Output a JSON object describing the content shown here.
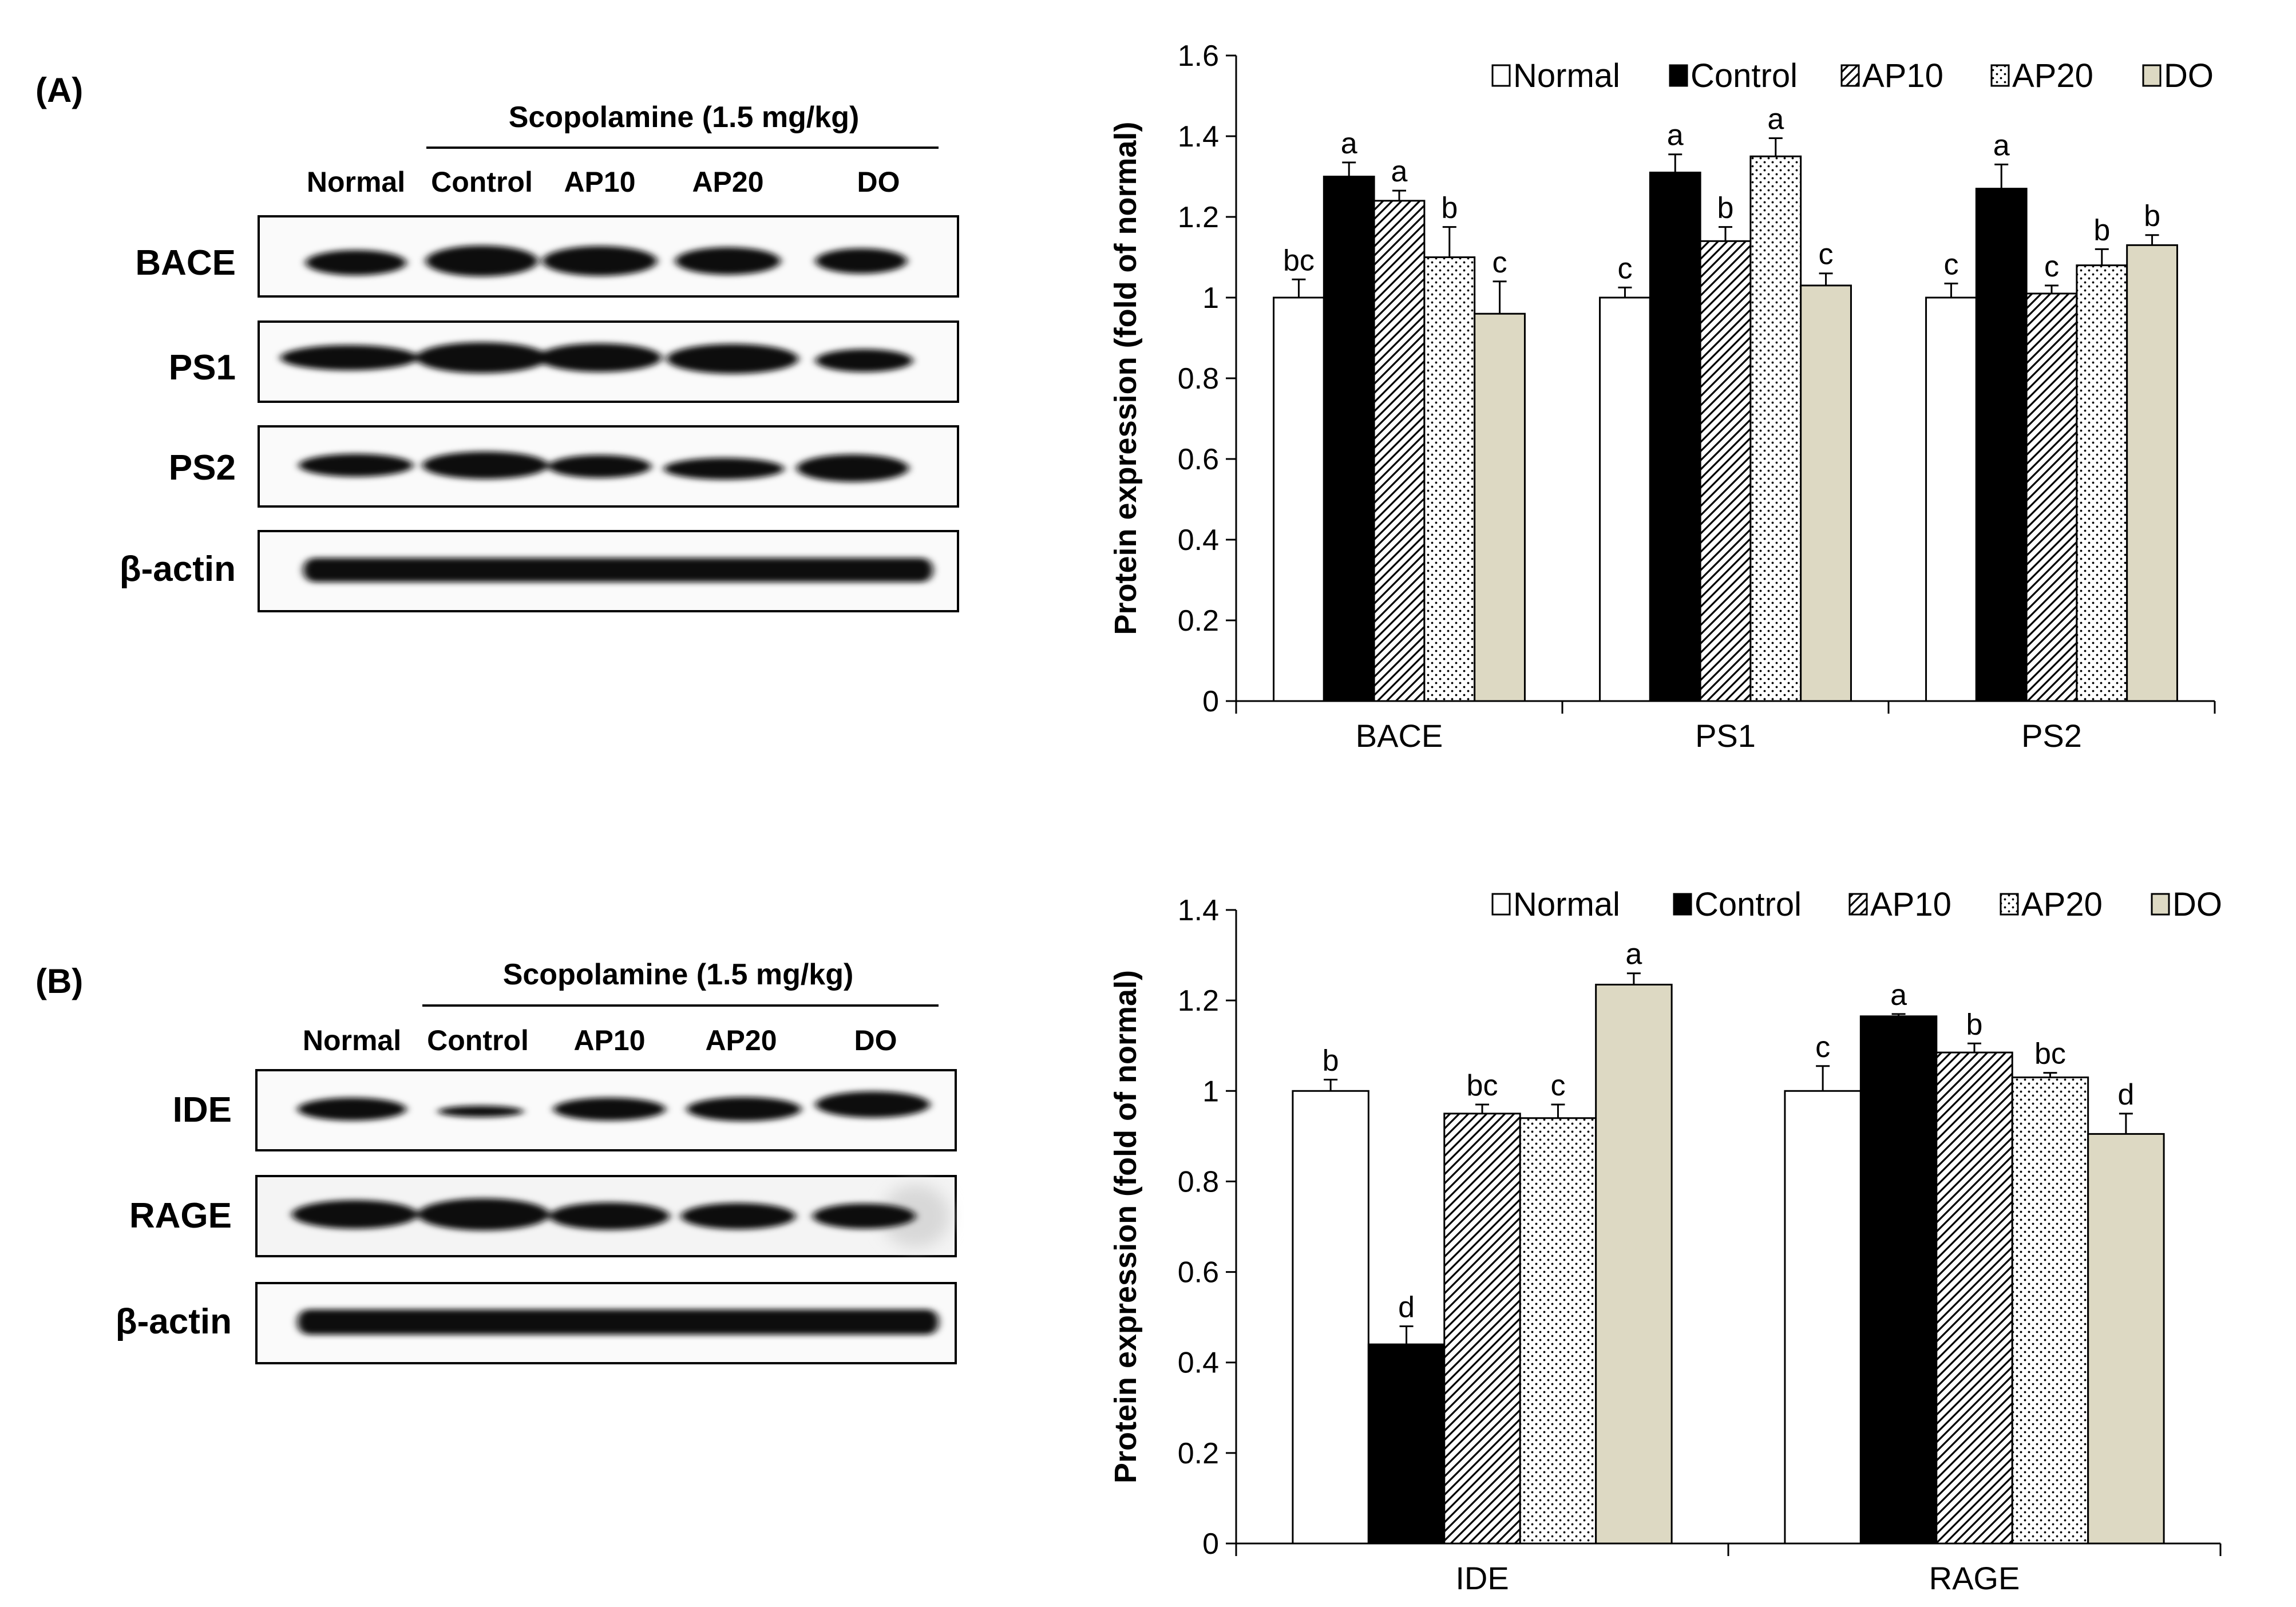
{
  "blot_A": {
    "panel_label": "(A)",
    "treatment": "Scopolamine (1.5 mg/kg)",
    "lanes": [
      "Normal",
      "Control",
      "AP10",
      "AP20",
      "DO"
    ],
    "rows": [
      "BACE",
      "PS1",
      "PS2",
      "β-actin"
    ]
  },
  "blot_B": {
    "panel_label": "(B)",
    "treatment": "Scopolamine (1.5 mg/kg)",
    "lanes": [
      "Normal",
      "Control",
      "AP10",
      "AP20",
      "DO"
    ],
    "rows": [
      "IDE",
      "RAGE",
      "β-actin"
    ]
  },
  "colors": {
    "Normal": "#ffffff",
    "Control": "#000000",
    "AP10": "#ffffff",
    "AP20": "#ffffff",
    "DO": "#ddd9c3"
  },
  "chart_data": [
    {
      "type": "bar",
      "title": "",
      "xlabel": "",
      "ylabel": "Protein expression (fold of normal)",
      "ylim": [
        0,
        1.6
      ],
      "yticks": [
        "0",
        "0.2",
        "0.4",
        "0.6",
        "0.8",
        "1",
        "1.2",
        "1.4",
        "1.6"
      ],
      "legend": [
        "Normal",
        "Control",
        "AP10",
        "AP20",
        "DO"
      ],
      "legend_position": "top",
      "categories": [
        "BACE",
        "PS1",
        "PS2"
      ],
      "series": [
        {
          "name": "Normal",
          "fill": "white",
          "values": [
            1.0,
            1.0,
            1.0
          ],
          "errors": [
            0.045,
            0.025,
            0.035
          ],
          "letters": [
            "bc",
            "c",
            "c"
          ]
        },
        {
          "name": "Control",
          "fill": "black",
          "values": [
            1.3,
            1.31,
            1.27
          ],
          "errors": [
            0.035,
            0.045,
            0.06
          ],
          "letters": [
            "a",
            "a",
            "a"
          ]
        },
        {
          "name": "AP10",
          "fill": "hatch",
          "values": [
            1.24,
            1.14,
            1.01
          ],
          "errors": [
            0.025,
            0.035,
            0.02
          ],
          "letters": [
            "a",
            "b",
            "c"
          ]
        },
        {
          "name": "AP20",
          "fill": "dots",
          "values": [
            1.1,
            1.35,
            1.08
          ],
          "errors": [
            0.075,
            0.045,
            0.04
          ],
          "letters": [
            "b",
            "a",
            "b"
          ]
        },
        {
          "name": "DO",
          "fill": "beige",
          "values": [
            0.96,
            1.03,
            1.13
          ],
          "errors": [
            0.08,
            0.03,
            0.025
          ],
          "letters": [
            "c",
            "c",
            "b"
          ]
        }
      ]
    },
    {
      "type": "bar",
      "title": "",
      "xlabel": "",
      "ylabel": "Protein expression (fold of normal)",
      "ylim": [
        0,
        1.4
      ],
      "yticks": [
        "0",
        "0.2",
        "0.4",
        "0.6",
        "0.8",
        "1",
        "1.2",
        "1.4"
      ],
      "legend": [
        "Normal",
        "Control",
        "AP10",
        "AP20",
        "DO"
      ],
      "legend_position": "top",
      "categories": [
        "IDE",
        "RAGE"
      ],
      "series": [
        {
          "name": "Normal",
          "fill": "white",
          "values": [
            1.0,
            1.0
          ],
          "errors": [
            0.025,
            0.055
          ],
          "letters": [
            "b",
            "c"
          ]
        },
        {
          "name": "Control",
          "fill": "black",
          "values": [
            0.44,
            1.165
          ],
          "errors": [
            0.04,
            0.005
          ],
          "letters": [
            "d",
            "a"
          ]
        },
        {
          "name": "AP10",
          "fill": "hatch",
          "values": [
            0.95,
            1.085
          ],
          "errors": [
            0.02,
            0.02
          ],
          "letters": [
            "bc",
            "b"
          ]
        },
        {
          "name": "AP20",
          "fill": "dots",
          "values": [
            0.94,
            1.03
          ],
          "errors": [
            0.03,
            0.01
          ],
          "letters": [
            "c",
            "bc"
          ]
        },
        {
          "name": "DO",
          "fill": "beige",
          "values": [
            1.235,
            0.905
          ],
          "errors": [
            0.025,
            0.045
          ],
          "letters": [
            "a",
            "d"
          ]
        }
      ]
    }
  ]
}
